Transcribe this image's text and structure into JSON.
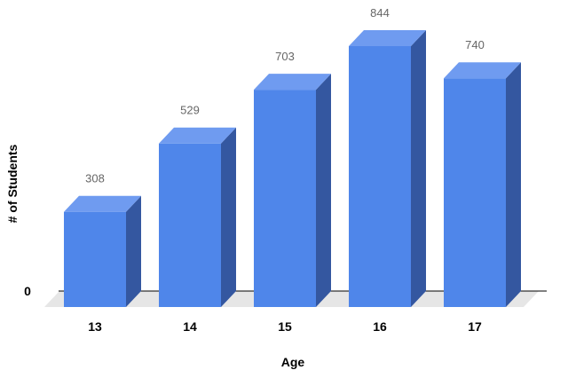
{
  "chart_data": {
    "type": "bar",
    "categories": [
      "13",
      "14",
      "15",
      "16",
      "17"
    ],
    "values": [
      308,
      529,
      703,
      844,
      740
    ],
    "data_labels": [
      "308",
      "529",
      "703",
      "844",
      "740"
    ],
    "title": "",
    "xlabel": "Age",
    "ylabel": "# of Students",
    "y_tick_labels": [
      "0"
    ],
    "ylim": [
      0,
      844
    ],
    "grid": false,
    "legend": "none",
    "style": "3d",
    "colors": {
      "front": "#4f86ea",
      "side": "#3457a0",
      "top": "#6f9bf0",
      "floor": "#e6e6e6",
      "baseline": "#000000"
    }
  }
}
